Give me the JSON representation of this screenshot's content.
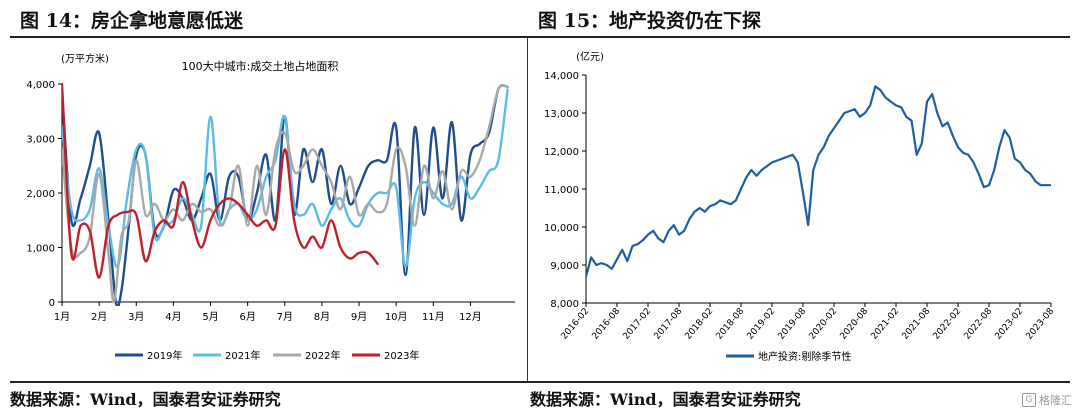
{
  "panel_left": {
    "title": "图 14：房企拿地意愿低迷",
    "source": "数据来源：Wind，国泰君安证券研究"
  },
  "panel_right": {
    "title": "图 15：地产投资仍在下探",
    "source": "数据来源：Wind，国泰君安证券研究"
  },
  "watermark": "格隆汇",
  "colors": {
    "2019": "#1f4e8c",
    "2021": "#5bbce6",
    "2022": "#a9a9a9",
    "2023": "#c0202a",
    "investment": "#1f5fa0"
  },
  "chart_data": [
    {
      "type": "line",
      "title": "100大中城市:成交土地占地面积",
      "ylabel": "(万平方米)",
      "ylim": [
        0,
        4000
      ],
      "yticks": [
        0,
        1000,
        2000,
        3000,
        4000
      ],
      "ytick_labels": [
        "0",
        "1,000",
        "2,000",
        "3,000",
        "4,000"
      ],
      "xlim": [
        1,
        13.2
      ],
      "xticks": [
        1,
        2,
        3,
        4,
        5,
        6,
        7,
        8,
        9,
        10,
        11,
        12
      ],
      "xtick_labels": [
        "1月",
        "2月",
        "3月",
        "4月",
        "5月",
        "6月",
        "7月",
        "8月",
        "9月",
        "10月",
        "11月",
        "12月"
      ],
      "legend_position": "bottom",
      "series": [
        {
          "name": "2019年",
          "color_key": "2019",
          "x": [
            1.0,
            1.25,
            1.5,
            1.75,
            2.0,
            2.25,
            2.45,
            2.6,
            2.8,
            3.0,
            3.25,
            3.5,
            3.75,
            4.0,
            4.25,
            4.5,
            4.75,
            5.0,
            5.25,
            5.5,
            5.75,
            6.0,
            6.25,
            6.5,
            6.75,
            7.0,
            7.25,
            7.5,
            7.75,
            8.0,
            8.25,
            8.5,
            8.75,
            9.0,
            9.25,
            9.5,
            9.75,
            10.0,
            10.25,
            10.5,
            10.75,
            11.0,
            11.25,
            11.5,
            11.75,
            12.0,
            12.25,
            12.5,
            12.75,
            13.0
          ],
          "values": [
            3900,
            1500,
            1900,
            2500,
            3100,
            1500,
            0,
            200,
            1400,
            2700,
            2700,
            1300,
            1400,
            2050,
            1900,
            1500,
            1900,
            2350,
            1500,
            2300,
            2300,
            1500,
            2000,
            2700,
            1500,
            3400,
            1600,
            2800,
            2200,
            2800,
            1800,
            2500,
            1800,
            2100,
            2500,
            2600,
            2600,
            3200,
            500,
            3200,
            1600,
            3200,
            1900,
            3300,
            1500,
            2700,
            2900,
            3100,
            3900,
            3950
          ]
        },
        {
          "name": "2021年",
          "color_key": "2021",
          "x": [
            1.0,
            1.25,
            1.5,
            1.75,
            2.0,
            2.25,
            2.5,
            2.75,
            3.0,
            3.25,
            3.5,
            3.75,
            4.0,
            4.25,
            4.5,
            4.75,
            5.0,
            5.25,
            5.5,
            5.75,
            6.0,
            6.25,
            6.5,
            6.75,
            7.0,
            7.25,
            7.5,
            7.75,
            8.0,
            8.25,
            8.5,
            8.75,
            9.0,
            9.25,
            9.5,
            9.75,
            10.0,
            10.25,
            10.5,
            10.75,
            11.0,
            11.25,
            11.5,
            11.75,
            12.0,
            12.25,
            12.5,
            12.75,
            13.0
          ],
          "values": [
            3200,
            1700,
            1500,
            1700,
            2450,
            1400,
            650,
            1900,
            2800,
            2700,
            1200,
            1400,
            1500,
            1900,
            1600,
            1400,
            3400,
            1500,
            1700,
            1800,
            1500,
            1700,
            2300,
            2600,
            3400,
            1800,
            1600,
            1800,
            1400,
            1700,
            1900,
            1500,
            1400,
            1800,
            2000,
            2000,
            2100,
            650,
            1900,
            2200,
            2000,
            1800,
            1800,
            2300,
            1900,
            2100,
            2400,
            2600,
            3900
          ]
        },
        {
          "name": "2022年",
          "color_key": "2022",
          "x": [
            1.0,
            1.25,
            1.5,
            1.75,
            2.0,
            2.25,
            2.4,
            2.6,
            2.8,
            3.0,
            3.25,
            3.5,
            3.75,
            4.0,
            4.25,
            4.5,
            4.75,
            5.0,
            5.25,
            5.5,
            5.75,
            6.0,
            6.25,
            6.5,
            6.75,
            7.0,
            7.25,
            7.5,
            7.75,
            8.0,
            8.25,
            8.5,
            8.75,
            9.0,
            9.25,
            9.5,
            9.75,
            10.0,
            10.25,
            10.5,
            10.75,
            11.0,
            11.25,
            11.5,
            11.75,
            12.0,
            12.25,
            12.5,
            12.75,
            13.0
          ],
          "values": [
            2800,
            1000,
            900,
            1200,
            2350,
            900,
            0,
            1200,
            1500,
            2600,
            1600,
            1800,
            1500,
            1700,
            1500,
            1800,
            1650,
            1700,
            1400,
            1700,
            2500,
            1400,
            2500,
            1600,
            2800,
            3100,
            2400,
            2500,
            2800,
            2500,
            2200,
            1700,
            2300,
            1600,
            1800,
            1650,
            1800,
            2800,
            2500,
            1400,
            2500,
            1900,
            2400,
            1700,
            2400,
            2300,
            2600,
            3200,
            3900,
            3950
          ]
        },
        {
          "name": "2023年",
          "color_key": "2023",
          "x": [
            1.0,
            1.25,
            1.5,
            1.75,
            2.0,
            2.25,
            2.5,
            2.75,
            3.0,
            3.25,
            3.5,
            3.75,
            4.0,
            4.25,
            4.5,
            4.75,
            5.0,
            5.25,
            5.5,
            5.75,
            6.0,
            6.25,
            6.5,
            6.75,
            7.0,
            7.25,
            7.5,
            7.75,
            8.0,
            8.25,
            8.5,
            8.75,
            9.0,
            9.25,
            9.5
          ],
          "values": [
            4000,
            900,
            1400,
            1300,
            450,
            1400,
            1600,
            1650,
            1600,
            750,
            1300,
            1500,
            1400,
            2200,
            1500,
            1000,
            1500,
            1800,
            1900,
            1800,
            1600,
            1400,
            1500,
            1400,
            2800,
            1500,
            1000,
            1200,
            1000,
            1500,
            1000,
            800,
            900,
            900,
            700
          ]
        }
      ]
    },
    {
      "type": "line",
      "title": "",
      "ylabel": "(亿元)",
      "ylim": [
        8000,
        14000
      ],
      "yticks": [
        8000,
        9000,
        10000,
        11000,
        12000,
        13000,
        14000
      ],
      "ytick_labels": [
        "8,000",
        "9,000",
        "10,000",
        "11,000",
        "12,000",
        "13,000",
        "14,000"
      ],
      "xlim": [
        0,
        90
      ],
      "xticks": [
        0,
        6,
        12,
        18,
        24,
        30,
        36,
        42,
        48,
        54,
        60,
        66,
        72,
        78,
        84,
        90
      ],
      "xtick_labels": [
        "2016-02",
        "2016-08",
        "2017-02",
        "2017-08",
        "2018-02",
        "2018-08",
        "2019-02",
        "2019-08",
        "2020-02",
        "2020-08",
        "2021-02",
        "2021-08",
        "2022-02",
        "2022-08",
        "2023-02",
        "2023-08"
      ],
      "legend_position": "bottom",
      "series": [
        {
          "name": "地产投资:剔除季节性",
          "color_key": "investment",
          "x": [
            0,
            1,
            2,
            3,
            4,
            5,
            6,
            7,
            8,
            9,
            10,
            11,
            12,
            13,
            14,
            15,
            16,
            17,
            18,
            19,
            20,
            21,
            22,
            23,
            24,
            25,
            26,
            27,
            28,
            29,
            30,
            31,
            32,
            33,
            34,
            35,
            36,
            37,
            38,
            39,
            40,
            41,
            42,
            43,
            44,
            45,
            46,
            47,
            48,
            49,
            50,
            51,
            52,
            53,
            54,
            55,
            56,
            57,
            58,
            59,
            60,
            61,
            62,
            63,
            64,
            65,
            66,
            67,
            68,
            69,
            70,
            71,
            72,
            73,
            74,
            75,
            76,
            77,
            78,
            79,
            80,
            81,
            82,
            83,
            84,
            85,
            86,
            87,
            88,
            89,
            90
          ],
          "values": [
            8700,
            9200,
            9000,
            9050,
            9000,
            8900,
            9150,
            9400,
            9100,
            9500,
            9550,
            9650,
            9800,
            9900,
            9700,
            9600,
            9900,
            10050,
            9800,
            9900,
            10200,
            10400,
            10500,
            10400,
            10550,
            10600,
            10700,
            10650,
            10600,
            10700,
            11000,
            11300,
            11500,
            11350,
            11500,
            11600,
            11700,
            11750,
            11800,
            11850,
            11900,
            11700,
            10900,
            10050,
            11500,
            11900,
            12100,
            12400,
            12600,
            12800,
            13000,
            13050,
            13100,
            12900,
            13000,
            13200,
            13700,
            13600,
            13400,
            13300,
            13200,
            13150,
            12900,
            12800,
            11900,
            12200,
            13300,
            13500,
            13000,
            12650,
            12750,
            12400,
            12100,
            11950,
            11900,
            11700,
            11400,
            11050,
            11100,
            11500,
            12100,
            12550,
            12350,
            11800,
            11700,
            11500,
            11400,
            11200,
            11100,
            11100,
            11100
          ]
        }
      ]
    }
  ]
}
